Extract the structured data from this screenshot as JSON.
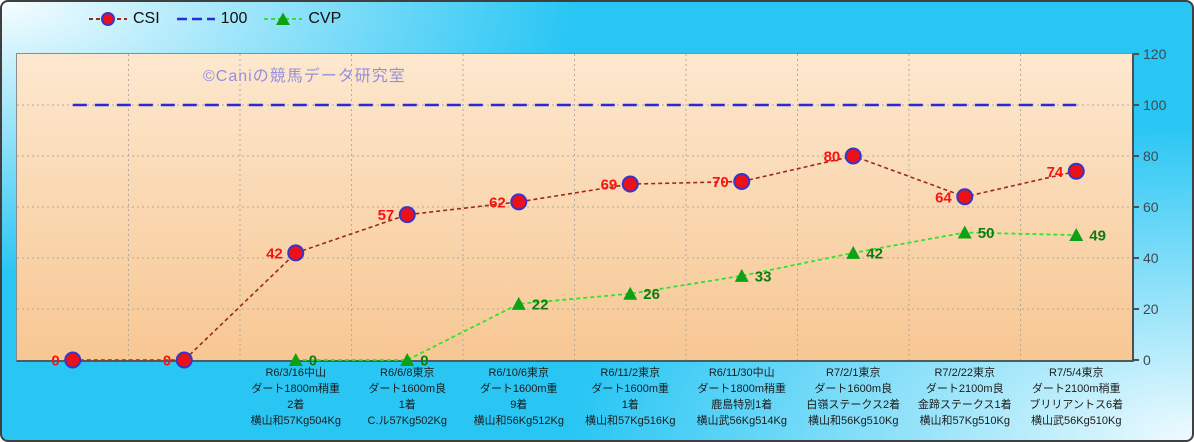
{
  "legend": {
    "items": [
      {
        "label": "CSI"
      },
      {
        "label": "100"
      },
      {
        "label": "CVP"
      }
    ]
  },
  "watermark": "©Caniの競馬データ研究室",
  "chart_data": {
    "type": "line",
    "title": "",
    "xlabel": "",
    "ylabel": "",
    "grid": true,
    "legend_position": "top",
    "y_axis": {
      "position": "right",
      "min": 0,
      "max": 120,
      "tick_interval": 20,
      "ticks": [
        0,
        20,
        40,
        60,
        80,
        100,
        120
      ]
    },
    "x_axis": {
      "categories": [
        [],
        [],
        [
          "R6/3/16中山",
          "ダート1800m稍重",
          "2着",
          "横山和57Kg504Kg"
        ],
        [
          "R6/6/8東京",
          "ダート1600m良",
          "1着",
          "C.ル57Kg502Kg"
        ],
        [
          "R6/10/6東京",
          "ダート1600m重",
          "9着",
          "横山和56Kg512Kg"
        ],
        [
          "R6/11/2東京",
          "ダート1600m重",
          "1着",
          "横山和57Kg516Kg"
        ],
        [
          "R6/11/30中山",
          "ダート1800m稍重",
          "鹿島特別1着",
          "横山武56Kg514Kg"
        ],
        [
          "R7/2/1東京",
          "ダート1600m良",
          "白嶺ステークス2着",
          "横山和56Kg510Kg"
        ],
        [
          "R7/2/22東京",
          "ダート2100m良",
          "金蹄ステークス1着",
          "横山和57Kg510Kg"
        ],
        [
          "R7/5/4東京",
          "ダート2100m稍重",
          "ブリリアントス6着",
          "横山武56Kg510Kg"
        ]
      ]
    },
    "series": [
      {
        "name": "CSI",
        "values": [
          0,
          0,
          42,
          57,
          62,
          69,
          70,
          80,
          64,
          74
        ],
        "line_color": "#9a2b1b",
        "line_dash": "4,3",
        "line_width": 1.6,
        "marker": "circle",
        "marker_fill": "#ee1019",
        "marker_edge": "#3636c8",
        "label_color": "#fb1210",
        "label_side": "left"
      },
      {
        "name": "100",
        "values": [
          100,
          100,
          100,
          100,
          100,
          100,
          100,
          100,
          100,
          100
        ],
        "line_color": "#2b2bd5",
        "line_dash": "14,8",
        "line_width": 2.5,
        "marker": "none"
      },
      {
        "name": "CVP",
        "values": [
          null,
          null,
          0,
          0,
          22,
          26,
          33,
          42,
          50,
          49
        ],
        "line_color": "#2ee42e",
        "line_dash": "4,3",
        "line_width": 1.8,
        "marker": "triangle",
        "marker_fill": "#0da216",
        "label_color": "#0d7c10",
        "label_side": "right"
      }
    ],
    "plot_colors": {
      "bg_top": "#fde8cf",
      "bg_bottom": "#f7c793",
      "gridline": "#ada59c"
    },
    "canvas_color": "#29c6f4"
  }
}
